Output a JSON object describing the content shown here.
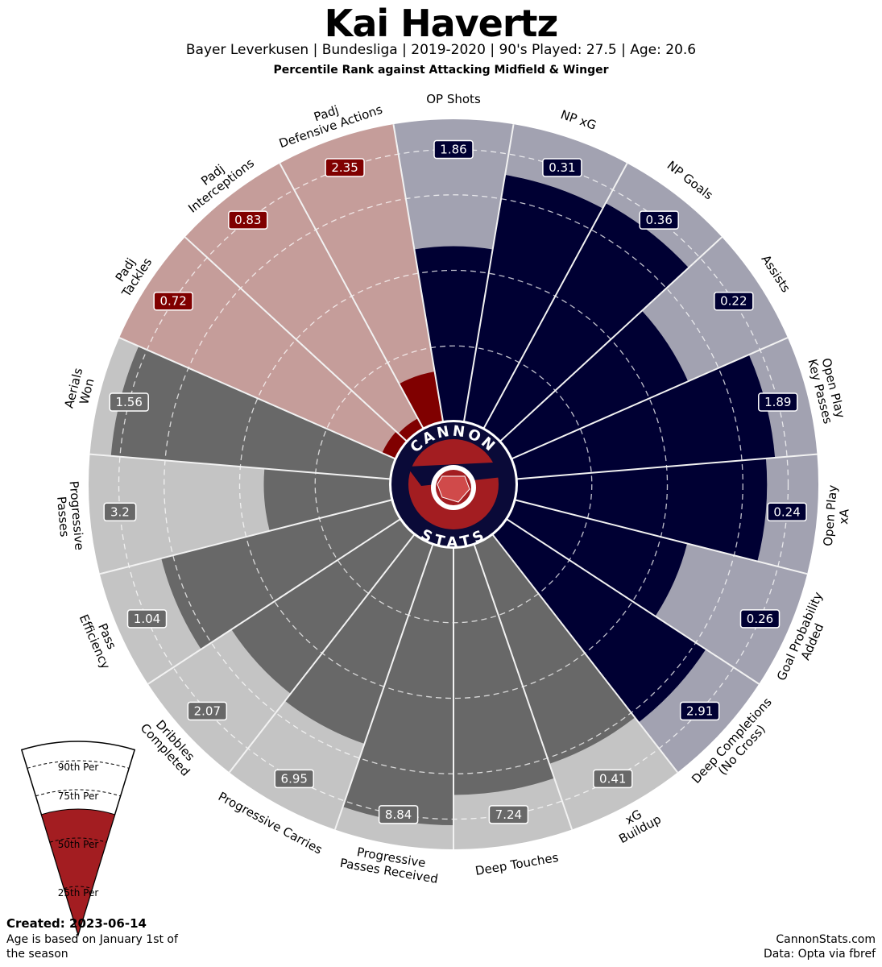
{
  "header": {
    "title": "Kai Havertz",
    "subtitle": "Bayer Leverkusen  | Bundesliga | 2019-2020 | 90's Played: 27.5 | Age: 20.6",
    "subtitle2": "Percentile Rank against Attacking Midfield & Winger"
  },
  "colors": {
    "attacking": "#000033",
    "attacking_bg": "#a2a2b1",
    "defending": "#800000",
    "defending_bg": "#c59d9a",
    "possession": "#686868",
    "possession_bg": "#c4c4c4",
    "logo_red": "#a31d21",
    "logo_navy": "#0a0a38"
  },
  "logo": {
    "top_text": "CANNON",
    "bottom_text": "STATS"
  },
  "chart_data": {
    "type": "radial-bar",
    "scale": "percentile",
    "rlim": [
      0,
      100
    ],
    "grid": true,
    "slices": [
      {
        "label": "OP Shots",
        "value_label": "1.86",
        "percentile": 58,
        "group": "attacking"
      },
      {
        "label": "NP xG",
        "value_label": "0.31",
        "percentile": 83,
        "group": "attacking"
      },
      {
        "label": "NP Goals",
        "value_label": "0.36",
        "percentile": 85,
        "group": "attacking"
      },
      {
        "label": "Assists",
        "value_label": "0.22",
        "percentile": 64,
        "group": "attacking"
      },
      {
        "label": "Open Play\nKey Passes",
        "value_label": "1.89",
        "percentile": 86,
        "group": "attacking"
      },
      {
        "label": "Open Play\nxA",
        "value_label": "0.24",
        "percentile": 83,
        "group": "attacking"
      },
      {
        "label": "Goal Probability\nAdded",
        "value_label": "0.26",
        "percentile": 59,
        "group": "attacking"
      },
      {
        "label": "Deep Completions\n(No Cross)",
        "value_label": "2.91",
        "percentile": 79,
        "group": "attacking"
      },
      {
        "label": "xG\nBuildup",
        "value_label": "0.41",
        "percentile": 77,
        "group": "possession"
      },
      {
        "label": "Deep Touches",
        "value_label": "7.24",
        "percentile": 82,
        "group": "possession"
      },
      {
        "label": "Progressive\nPasses Received",
        "value_label": "8.84",
        "percentile": 92,
        "group": "possession"
      },
      {
        "label": "Progressive Carries",
        "value_label": "6.95",
        "percentile": 70,
        "group": "possession"
      },
      {
        "label": "Dribbles\nCompleted",
        "value_label": "2.07",
        "percentile": 67,
        "group": "possession"
      },
      {
        "label": "Pass\nEfficiency",
        "value_label": "1.04",
        "percentile": 79,
        "group": "possession"
      },
      {
        "label": "Progressive\nPasses",
        "value_label": "3.2",
        "percentile": 42,
        "group": "possession"
      },
      {
        "label": "Aerials\nWon",
        "value_label": "1.56",
        "percentile": 93,
        "group": "possession"
      },
      {
        "label": "Padj\nTackles",
        "value_label": "0.72",
        "percentile": 5,
        "group": "defending"
      },
      {
        "label": "Padj\nInterceptions",
        "value_label": "0.83",
        "percentile": 4,
        "group": "defending"
      },
      {
        "label": "Padj\nDefensive Actions",
        "value_label": "2.35",
        "percentile": 17,
        "group": "defending"
      }
    ]
  },
  "legend": {
    "labels": [
      "90th Per",
      "75th Per",
      "50th Per",
      "25th Per"
    ],
    "percentiles": [
      90,
      75,
      50,
      25
    ],
    "fill_percentile": 65
  },
  "footer": {
    "created": "Created: 2023-06-14",
    "age_note": "Age is based on January 1st of the season",
    "site": "CannonStats.com",
    "source": "Data: Opta via fbref"
  }
}
